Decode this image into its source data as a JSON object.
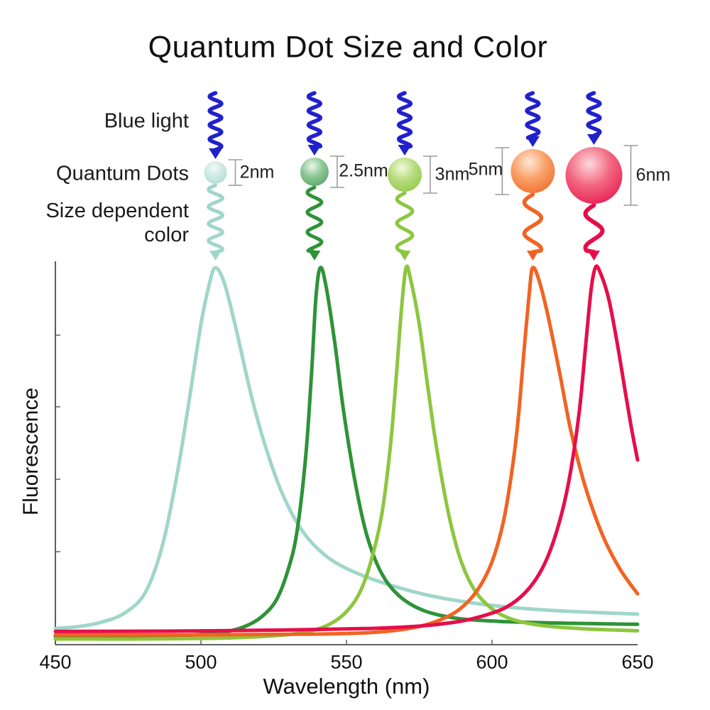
{
  "title": "Quantum Dot Size and Color",
  "annotations": {
    "excitation_label": "Blue light",
    "dots_label": "Quantum Dots",
    "emission_label_line1": "Size dependent",
    "emission_label_line2": "color"
  },
  "excitation": {
    "color": "#2121cc"
  },
  "bracket_color": "#9b9b9b",
  "axis_color": "#4a4a4a",
  "dots": [
    {
      "size_label": "2nm",
      "size_nm": 2,
      "emission_peak_nm": 505,
      "curve_color": "#a0d6ca",
      "sphere": {
        "highlight": "#f3fbf8",
        "base": "#cde9e2",
        "edge": "#a9dacf"
      }
    },
    {
      "size_label": "2.5nm",
      "size_nm": 2.5,
      "emission_peak_nm": 539,
      "curve_color": "#2e9338",
      "sphere": {
        "highlight": "#eaf6ea",
        "base": "#8cc796",
        "edge": "#4f9f60"
      }
    },
    {
      "size_label": "3nm",
      "size_nm": 3,
      "emission_peak_nm": 570,
      "curve_color": "#8dc63f",
      "sphere": {
        "highlight": "#f3f9dd",
        "base": "#b6db7d",
        "edge": "#8dc63f"
      }
    },
    {
      "size_label": "5nm",
      "size_nm": 5,
      "emission_peak_nm": 614,
      "curve_color": "#f26322",
      "sphere": {
        "highlight": "#fee9d8",
        "base": "#f9a067",
        "edge": "#f26322"
      }
    },
    {
      "size_label": "6nm",
      "size_nm": 6,
      "emission_peak_nm": 635,
      "curve_color": "#e60e4a",
      "sphere": {
        "highlight": "#fdd9de",
        "base": "#f2677f",
        "edge": "#e60e4a"
      }
    }
  ],
  "chart_data": {
    "type": "line",
    "title": "",
    "xlabel": "Wavelength (nm)",
    "ylabel": "Fluorescence",
    "xlim": [
      450,
      650
    ],
    "ylim": [
      0,
      1.05
    ],
    "x_ticks": [
      450,
      500,
      550,
      600,
      650
    ],
    "grid": false,
    "legend_position": "none",
    "series": [
      {
        "name": "2nm quantum dot",
        "peak_nm": 505,
        "color": "#a0d6ca",
        "points": [
          [
            450,
            0.043
          ],
          [
            458,
            0.048
          ],
          [
            466,
            0.06
          ],
          [
            474,
            0.085
          ],
          [
            481,
            0.14
          ],
          [
            487,
            0.27
          ],
          [
            492,
            0.46
          ],
          [
            496,
            0.65
          ],
          [
            500,
            0.85
          ],
          [
            503,
            0.96
          ],
          [
            505,
            1.0
          ],
          [
            508,
            0.96
          ],
          [
            512,
            0.84
          ],
          [
            517,
            0.67
          ],
          [
            522,
            0.53
          ],
          [
            528,
            0.4
          ],
          [
            535,
            0.3
          ],
          [
            543,
            0.235
          ],
          [
            552,
            0.195
          ],
          [
            563,
            0.163
          ],
          [
            577,
            0.133
          ],
          [
            592,
            0.112
          ],
          [
            608,
            0.098
          ],
          [
            625,
            0.089
          ],
          [
            650,
            0.081
          ]
        ]
      },
      {
        "name": "2.5nm quantum dot",
        "peak_nm": 539,
        "color": "#2e9338",
        "points": [
          [
            450,
            0.022
          ],
          [
            475,
            0.022
          ],
          [
            495,
            0.025
          ],
          [
            507,
            0.032
          ],
          [
            515,
            0.048
          ],
          [
            521,
            0.075
          ],
          [
            526,
            0.12
          ],
          [
            530,
            0.2
          ],
          [
            533,
            0.3
          ],
          [
            536,
            0.5
          ],
          [
            538,
            0.72
          ],
          [
            539.5,
            0.92
          ],
          [
            541,
            1.0
          ],
          [
            543,
            0.95
          ],
          [
            546,
            0.8
          ],
          [
            549,
            0.62
          ],
          [
            553,
            0.43
          ],
          [
            557,
            0.29
          ],
          [
            562,
            0.19
          ],
          [
            568,
            0.13
          ],
          [
            576,
            0.092
          ],
          [
            587,
            0.071
          ],
          [
            602,
            0.062
          ],
          [
            625,
            0.057
          ],
          [
            650,
            0.054
          ]
        ]
      },
      {
        "name": "3nm quantum dot",
        "peak_nm": 570,
        "color": "#8dc63f",
        "points": [
          [
            450,
            0.015
          ],
          [
            480,
            0.015
          ],
          [
            505,
            0.017
          ],
          [
            522,
            0.022
          ],
          [
            535,
            0.032
          ],
          [
            543,
            0.05
          ],
          [
            549,
            0.08
          ],
          [
            554,
            0.13
          ],
          [
            558,
            0.21
          ],
          [
            562,
            0.34
          ],
          [
            565,
            0.52
          ],
          [
            567,
            0.7
          ],
          [
            569,
            0.9
          ],
          [
            570.5,
            1.0
          ],
          [
            572,
            0.97
          ],
          [
            575,
            0.85
          ],
          [
            578,
            0.68
          ],
          [
            581,
            0.52
          ],
          [
            585,
            0.35
          ],
          [
            589,
            0.23
          ],
          [
            594,
            0.145
          ],
          [
            600,
            0.095
          ],
          [
            607,
            0.067
          ],
          [
            617,
            0.051
          ],
          [
            632,
            0.042
          ],
          [
            650,
            0.037
          ]
        ]
      },
      {
        "name": "5nm quantum dot",
        "peak_nm": 614,
        "color": "#f26322",
        "points": [
          [
            450,
            0.026
          ],
          [
            500,
            0.026
          ],
          [
            540,
            0.028
          ],
          [
            560,
            0.033
          ],
          [
            573,
            0.045
          ],
          [
            582,
            0.065
          ],
          [
            589,
            0.095
          ],
          [
            595,
            0.145
          ],
          [
            600,
            0.22
          ],
          [
            604,
            0.33
          ],
          [
            607,
            0.47
          ],
          [
            609,
            0.6
          ],
          [
            611,
            0.78
          ],
          [
            613,
            0.95
          ],
          [
            614,
            1.0
          ],
          [
            616,
            0.97
          ],
          [
            619,
            0.88
          ],
          [
            623,
            0.73
          ],
          [
            627,
            0.57
          ],
          [
            632,
            0.42
          ],
          [
            638,
            0.29
          ],
          [
            644,
            0.2
          ],
          [
            650,
            0.135
          ]
        ]
      },
      {
        "name": "6nm quantum dot",
        "peak_nm": 635,
        "color": "#e60e4a",
        "points": [
          [
            450,
            0.035
          ],
          [
            490,
            0.036
          ],
          [
            530,
            0.039
          ],
          [
            558,
            0.043
          ],
          [
            576,
            0.05
          ],
          [
            589,
            0.062
          ],
          [
            598,
            0.079
          ],
          [
            605,
            0.1
          ],
          [
            611,
            0.135
          ],
          [
            616,
            0.185
          ],
          [
            620,
            0.25
          ],
          [
            624,
            0.35
          ],
          [
            627,
            0.46
          ],
          [
            630,
            0.62
          ],
          [
            632,
            0.78
          ],
          [
            634,
            0.94
          ],
          [
            635.5,
            1.0
          ],
          [
            637,
            0.99
          ],
          [
            640,
            0.92
          ],
          [
            643,
            0.8
          ],
          [
            646,
            0.66
          ],
          [
            648,
            0.57
          ],
          [
            650,
            0.49
          ]
        ]
      }
    ]
  }
}
